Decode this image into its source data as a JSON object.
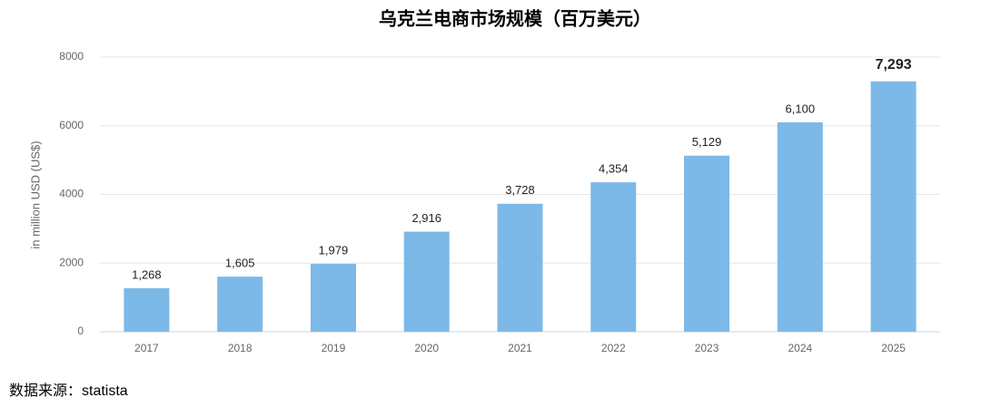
{
  "chart_data": {
    "type": "bar",
    "title": "乌克兰电商市场规模（百万美元）",
    "y_label": "in million USD (US$)",
    "source": "数据来源：statista",
    "categories": [
      "2017",
      "2018",
      "2019",
      "2020",
      "2021",
      "2022",
      "2023",
      "2024",
      "2025"
    ],
    "values": [
      1268,
      1605,
      1979,
      2916,
      3728,
      4354,
      5129,
      6100,
      7293
    ],
    "value_labels": [
      "1,268",
      "1,605",
      "1,979",
      "2,916",
      "3,728",
      "4,354",
      "5,129",
      "6,100",
      "7,293"
    ],
    "color": "#7cb9e8",
    "ylim": [
      0,
      8000
    ],
    "yticks": [
      0,
      2000,
      4000,
      6000,
      8000
    ],
    "grid": true
  }
}
